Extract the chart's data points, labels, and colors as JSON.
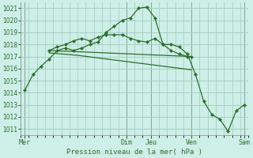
{
  "background_color": "#ceeee8",
  "plot_bg_color": "#ceeee8",
  "grid_color": "#a0ccbb",
  "line_color": "#2d6e2d",
  "text_color": "#2d6e2d",
  "xlabel_text": "Pression niveau de la mer( hPa )",
  "ylim": [
    1010.5,
    1021.5
  ],
  "yticks": [
    1011,
    1012,
    1013,
    1014,
    1015,
    1016,
    1017,
    1018,
    1019,
    1020,
    1021
  ],
  "xlim": [
    0,
    28
  ],
  "x_day_labels": [
    "Mer",
    "Dim",
    "Jeu",
    "Ven",
    "Sam"
  ],
  "x_day_positions": [
    0.5,
    13,
    16,
    21,
    27.5
  ],
  "vline_positions": [
    0.5,
    13,
    16,
    21,
    27.5
  ],
  "line1_x": [
    0.5,
    1.5,
    2.5,
    3.5,
    4.5,
    5.5,
    6.5,
    7.5,
    8.5,
    9.5,
    10.5,
    11.5,
    12.5,
    13.5,
    14.5,
    15.5,
    16.5,
    17.5,
    18.5,
    19.5,
    20.5,
    21.5,
    22.5,
    23.5,
    24.5,
    25.5,
    26.5,
    27.5
  ],
  "line1_y": [
    1014.2,
    1015.5,
    1016.2,
    1016.8,
    1017.5,
    1017.7,
    1017.5,
    1017.7,
    1018.0,
    1018.2,
    1019.0,
    1019.5,
    1020.0,
    1020.2,
    1021.0,
    1021.1,
    1020.2,
    1018.0,
    1018.0,
    1017.8,
    1017.2,
    1015.5,
    1013.3,
    1012.2,
    1011.8,
    1010.8,
    1012.5,
    1013.0
  ],
  "line2_x": [
    3.5,
    4.5,
    5.5,
    6.5,
    7.5,
    8.5,
    9.5,
    10.5,
    11.5,
    12.5,
    13.5,
    14.5,
    15.5,
    16.5,
    17.5,
    18.5,
    19.5,
    20.5,
    21.0
  ],
  "line2_y": [
    1017.5,
    1017.8,
    1018.0,
    1018.3,
    1018.5,
    1018.3,
    1018.6,
    1018.8,
    1018.8,
    1018.8,
    1018.5,
    1018.3,
    1018.2,
    1018.5,
    1018.0,
    1017.5,
    1017.2,
    1017.0,
    1017.0
  ],
  "line3_x": [
    3.5,
    7.0,
    10.5,
    14.0,
    17.5,
    21.0
  ],
  "line3_y": [
    1017.5,
    1017.4,
    1017.3,
    1017.2,
    1017.1,
    1017.0
  ],
  "line4_x": [
    3.5,
    7.0,
    10.5,
    14.0,
    17.5,
    21.0
  ],
  "line4_y": [
    1017.3,
    1017.1,
    1016.8,
    1016.5,
    1016.2,
    1015.9
  ],
  "total_x": 28
}
